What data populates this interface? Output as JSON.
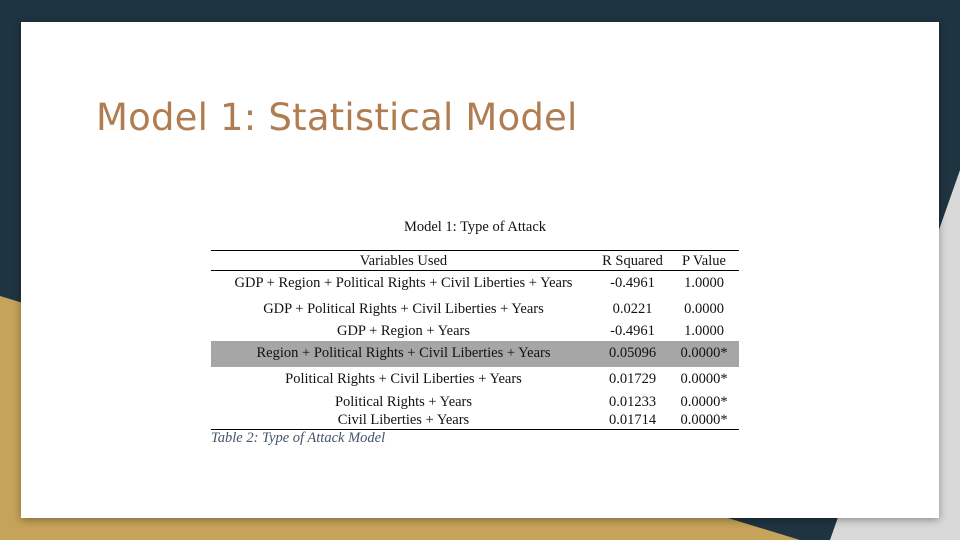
{
  "slide": {
    "title": "Model 1: Statistical Model"
  },
  "table": {
    "caption": "Model 1: Type of Attack",
    "headers": {
      "variables": "Variables Used",
      "r_squared": "R Squared",
      "p_value": "P Value"
    },
    "rows": [
      {
        "variables": "GDP + Region + Political Rights + Civil Liberties + Years",
        "r_squared": "-0.4961",
        "p_value": "1.0000",
        "highlighted": false
      },
      {
        "variables": "GDP + Political Rights + Civil Liberties + Years",
        "r_squared": "0.0221",
        "p_value": "0.0000",
        "highlighted": false
      },
      {
        "variables": "GDP + Region + Years",
        "r_squared": "-0.4961",
        "p_value": "1.0000",
        "highlighted": false
      },
      {
        "variables": "Region + Political Rights + Civil Liberties + Years",
        "r_squared": "0.05096",
        "p_value": "0.0000*",
        "highlighted": true
      },
      {
        "variables": "Political Rights + Civil Liberties + Years",
        "r_squared": "0.01729",
        "p_value": "0.0000*",
        "highlighted": false
      },
      {
        "variables": "Political Rights + Years",
        "r_squared": "0.01233",
        "p_value": "0.0000*",
        "highlighted": false
      },
      {
        "variables": "Civil Liberties + Years",
        "r_squared": "0.01714",
        "p_value": "0.0000*",
        "highlighted": false
      }
    ],
    "note": "Table 2: Type of Attack Model"
  },
  "colors": {
    "background_dark": "#1f3441",
    "background_gold": "#c6a35a",
    "background_gray": "#d9d9d9",
    "title": "#b07d50",
    "highlight_row": "#a6a6a6",
    "note": "#44546a"
  }
}
